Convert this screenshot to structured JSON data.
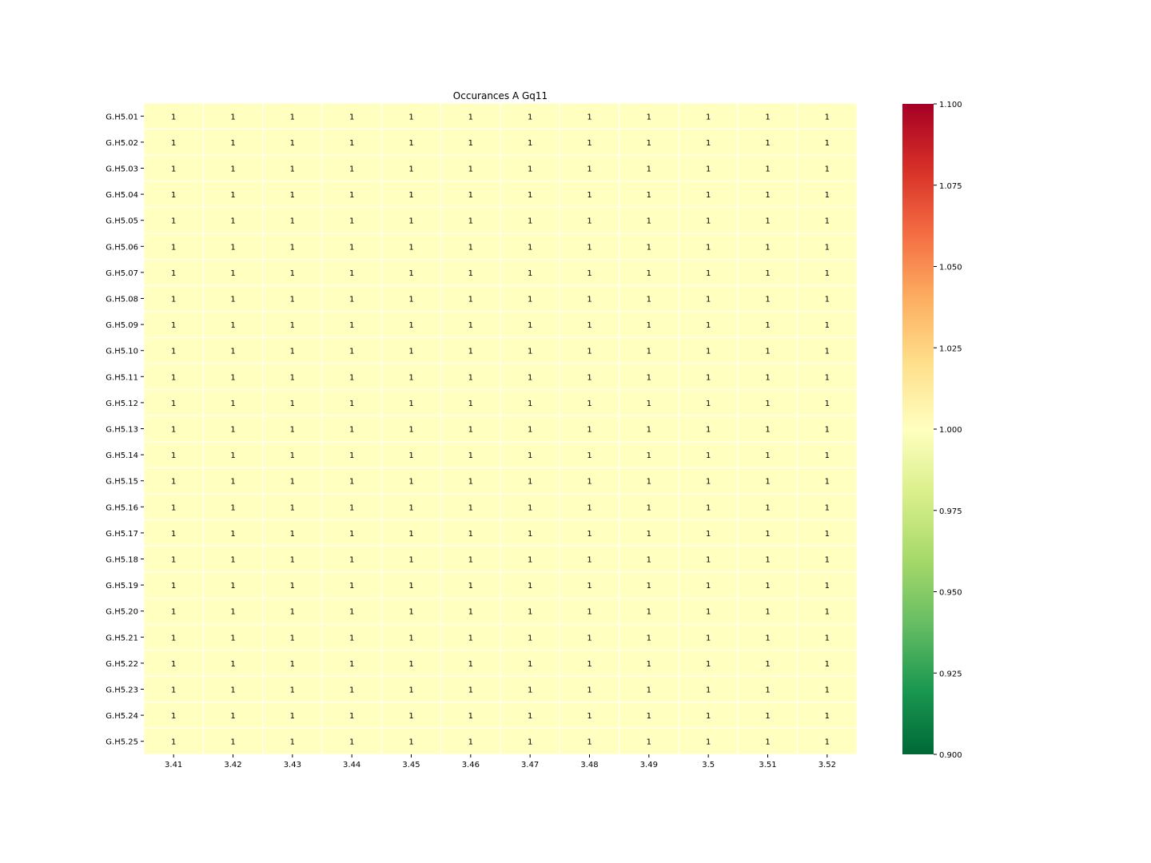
{
  "chart_data": {
    "type": "heatmap",
    "title": "Occurances A Gq11",
    "xlabel": "",
    "ylabel": "",
    "x_categories": [
      "3.41",
      "3.42",
      "3.43",
      "3.44",
      "3.45",
      "3.46",
      "3.47",
      "3.48",
      "3.49",
      "3.5",
      "3.51",
      "3.52"
    ],
    "y_categories": [
      "G.H5.01",
      "G.H5.02",
      "G.H5.03",
      "G.H5.04",
      "G.H5.05",
      "G.H5.06",
      "G.H5.07",
      "G.H5.08",
      "G.H5.09",
      "G.H5.10",
      "G.H5.11",
      "G.H5.12",
      "G.H5.13",
      "G.H5.14",
      "G.H5.15",
      "G.H5.16",
      "G.H5.17",
      "G.H5.18",
      "G.H5.19",
      "G.H5.20",
      "G.H5.21",
      "G.H5.22",
      "G.H5.23",
      "G.H5.24",
      "G.H5.25"
    ],
    "values": [
      [
        1,
        1,
        1,
        1,
        1,
        1,
        1,
        1,
        1,
        1,
        1,
        1
      ],
      [
        1,
        1,
        1,
        1,
        1,
        1,
        1,
        1,
        1,
        1,
        1,
        1
      ],
      [
        1,
        1,
        1,
        1,
        1,
        1,
        1,
        1,
        1,
        1,
        1,
        1
      ],
      [
        1,
        1,
        1,
        1,
        1,
        1,
        1,
        1,
        1,
        1,
        1,
        1
      ],
      [
        1,
        1,
        1,
        1,
        1,
        1,
        1,
        1,
        1,
        1,
        1,
        1
      ],
      [
        1,
        1,
        1,
        1,
        1,
        1,
        1,
        1,
        1,
        1,
        1,
        1
      ],
      [
        1,
        1,
        1,
        1,
        1,
        1,
        1,
        1,
        1,
        1,
        1,
        1
      ],
      [
        1,
        1,
        1,
        1,
        1,
        1,
        1,
        1,
        1,
        1,
        1,
        1
      ],
      [
        1,
        1,
        1,
        1,
        1,
        1,
        1,
        1,
        1,
        1,
        1,
        1
      ],
      [
        1,
        1,
        1,
        1,
        1,
        1,
        1,
        1,
        1,
        1,
        1,
        1
      ],
      [
        1,
        1,
        1,
        1,
        1,
        1,
        1,
        1,
        1,
        1,
        1,
        1
      ],
      [
        1,
        1,
        1,
        1,
        1,
        1,
        1,
        1,
        1,
        1,
        1,
        1
      ],
      [
        1,
        1,
        1,
        1,
        1,
        1,
        1,
        1,
        1,
        1,
        1,
        1
      ],
      [
        1,
        1,
        1,
        1,
        1,
        1,
        1,
        1,
        1,
        1,
        1,
        1
      ],
      [
        1,
        1,
        1,
        1,
        1,
        1,
        1,
        1,
        1,
        1,
        1,
        1
      ],
      [
        1,
        1,
        1,
        1,
        1,
        1,
        1,
        1,
        1,
        1,
        1,
        1
      ],
      [
        1,
        1,
        1,
        1,
        1,
        1,
        1,
        1,
        1,
        1,
        1,
        1
      ],
      [
        1,
        1,
        1,
        1,
        1,
        1,
        1,
        1,
        1,
        1,
        1,
        1
      ],
      [
        1,
        1,
        1,
        1,
        1,
        1,
        1,
        1,
        1,
        1,
        1,
        1
      ],
      [
        1,
        1,
        1,
        1,
        1,
        1,
        1,
        1,
        1,
        1,
        1,
        1
      ],
      [
        1,
        1,
        1,
        1,
        1,
        1,
        1,
        1,
        1,
        1,
        1,
        1
      ],
      [
        1,
        1,
        1,
        1,
        1,
        1,
        1,
        1,
        1,
        1,
        1,
        1
      ],
      [
        1,
        1,
        1,
        1,
        1,
        1,
        1,
        1,
        1,
        1,
        1,
        1
      ],
      [
        1,
        1,
        1,
        1,
        1,
        1,
        1,
        1,
        1,
        1,
        1,
        1
      ],
      [
        1,
        1,
        1,
        1,
        1,
        1,
        1,
        1,
        1,
        1,
        1,
        1
      ]
    ],
    "colormap": "RdYlGn_r",
    "colorbar": {
      "range": [
        0.9,
        1.1
      ],
      "ticks": [
        "0.900",
        "0.925",
        "0.950",
        "0.975",
        "1.000",
        "1.025",
        "1.050",
        "1.075",
        "1.100"
      ],
      "colors": [
        "#006837",
        "#1a9850",
        "#66bd63",
        "#a6d96a",
        "#d9ef8b",
        "#ffffbf",
        "#fee08b",
        "#fdae61",
        "#f46d43",
        "#d73027",
        "#a50026"
      ]
    },
    "annotated": true,
    "grid_line_color": "#ffffff"
  }
}
